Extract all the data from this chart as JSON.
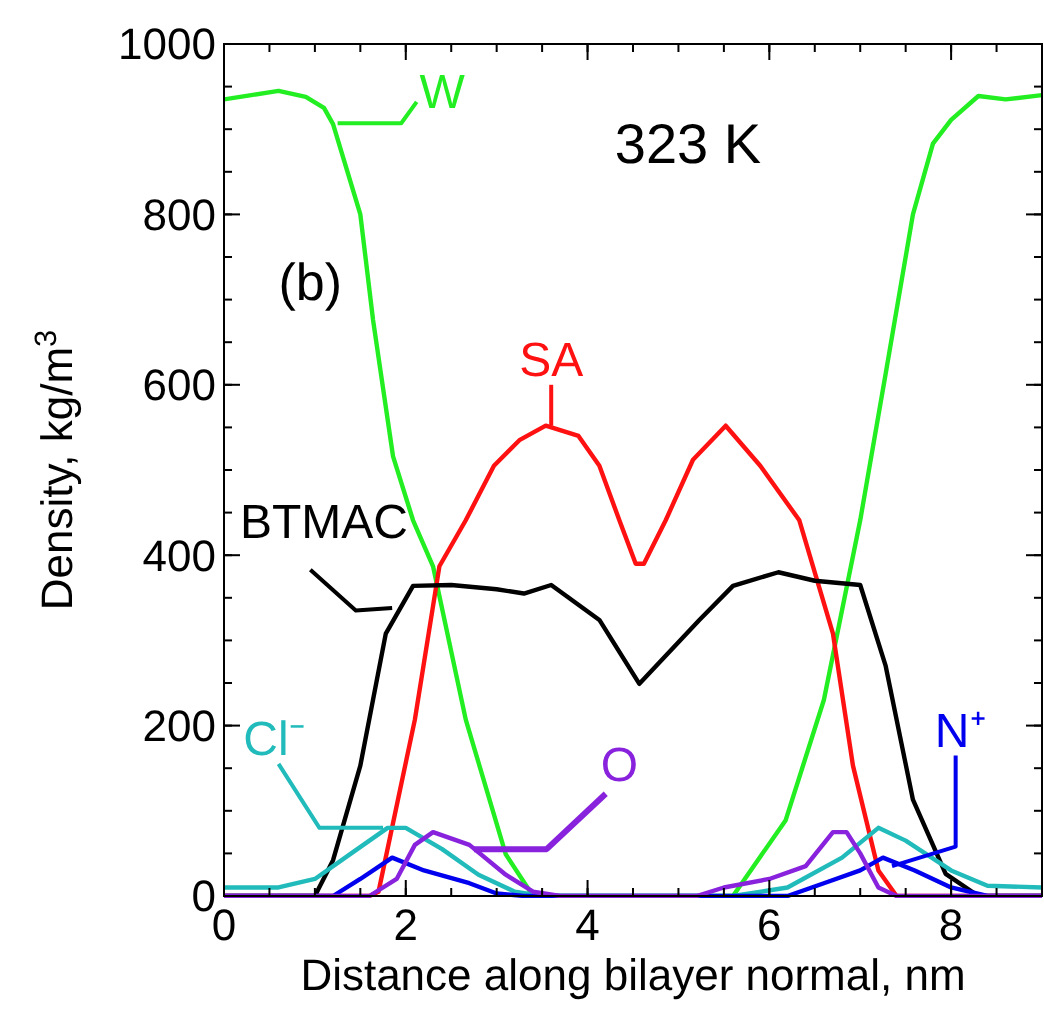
{
  "chart_data": {
    "type": "line",
    "xlabel": "Distance along bilayer normal, nm",
    "ylabel": "Density, kg/m$^{3}$",
    "annotations": [
      "323 K",
      "(b)"
    ],
    "xlim": [
      0,
      9
    ],
    "ylim": [
      0,
      1000
    ],
    "xticks": [
      0,
      2,
      4,
      6,
      8
    ],
    "yticks": [
      0,
      200,
      400,
      600,
      800,
      1000
    ],
    "grid": false,
    "marker": "none",
    "line_style": "solid",
    "series": [
      {
        "name": "W",
        "color": "#22ee22",
        "x": [
          0,
          0.3,
          0.6,
          0.9,
          1.1,
          1.2,
          1.5,
          1.64,
          1.86,
          2.08,
          2.3,
          2.66,
          3.1,
          3.4,
          5.6,
          6.18,
          6.6,
          7.0,
          7.28,
          7.58,
          7.8,
          8.0,
          8.3,
          8.6,
          9
        ],
        "values": [
          935,
          940,
          945,
          938,
          925,
          906,
          800,
          676,
          516,
          441,
          387,
          207,
          49,
          0,
          0,
          89,
          230,
          441,
          613,
          800,
          883,
          911,
          939,
          935,
          940
        ]
      },
      {
        "name": "SA",
        "color": "#ff1111",
        "x": [
          0,
          1.6,
          1.7,
          2.1,
          2.37,
          2.66,
          2.97,
          3.25,
          3.54,
          3.9,
          4.13,
          4.35,
          4.53,
          4.62,
          4.86,
          5.16,
          5.52,
          5.9,
          6.33,
          6.7,
          6.92,
          7.2,
          7.4,
          9
        ],
        "values": [
          0,
          0,
          5,
          207,
          387,
          441,
          505,
          535,
          552,
          540,
          505,
          441,
          390,
          390,
          441,
          512,
          552,
          505,
          441,
          308,
          153,
          30,
          0,
          0
        ]
      },
      {
        "name": "BTMAC",
        "color": "#000000",
        "x": [
          0,
          1.0,
          1.2,
          1.5,
          1.78,
          2.08,
          2.5,
          3.0,
          3.3,
          3.6,
          4.13,
          4.57,
          5.23,
          5.6,
          6.1,
          6.5,
          7.0,
          7.28,
          7.58,
          7.94,
          8.3,
          9
        ],
        "values": [
          0,
          0,
          42,
          153,
          308,
          364,
          365,
          360,
          355,
          365,
          324,
          249,
          324,
          364,
          380,
          370,
          365,
          270,
          113,
          26,
          0,
          0
        ]
      },
      {
        "name": "Cl⁻",
        "color": "#22bbbb",
        "x": [
          0,
          0.6,
          1.0,
          1.4,
          1.8,
          2.0,
          2.4,
          2.8,
          3.2,
          3.5,
          5.6,
          6.2,
          6.8,
          7.2,
          7.5,
          8.0,
          8.4,
          9
        ],
        "values": [
          10,
          10,
          20,
          50,
          80,
          80,
          55,
          25,
          5,
          0,
          0,
          10,
          45,
          80,
          65,
          30,
          12,
          10
        ]
      },
      {
        "name": "N⁺",
        "color": "#0000ee",
        "x": [
          0,
          1.2,
          1.5,
          1.85,
          2.2,
          2.7,
          3.0,
          3.3,
          6.2,
          6.6,
          7.0,
          7.25,
          7.6,
          8.0,
          8.4,
          9
        ],
        "values": [
          0,
          0,
          20,
          45,
          30,
          15,
          3,
          0,
          0,
          15,
          30,
          45,
          30,
          10,
          0,
          0
        ]
      },
      {
        "name": "O",
        "color": "#8822dd",
        "x": [
          0,
          1.6,
          1.9,
          2.1,
          2.3,
          2.7,
          3.1,
          3.4,
          3.7,
          5.2,
          5.5,
          6.0,
          6.4,
          6.7,
          6.85,
          7.0,
          7.2,
          7.4,
          9
        ],
        "values": [
          0,
          0,
          20,
          60,
          75,
          60,
          25,
          5,
          0,
          0,
          10,
          20,
          35,
          75,
          75,
          50,
          10,
          0,
          0
        ]
      }
    ]
  }
}
